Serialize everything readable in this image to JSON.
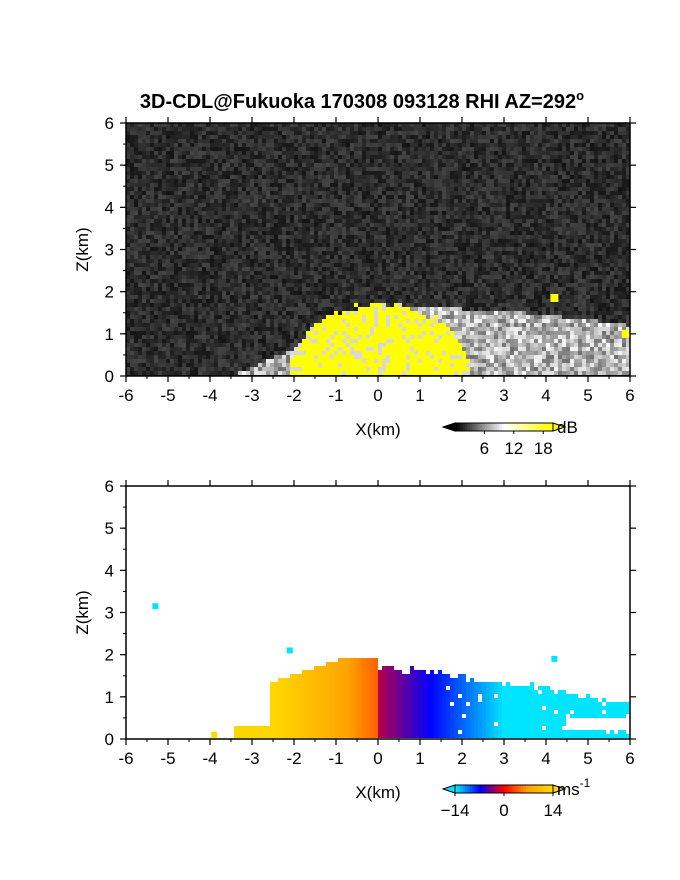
{
  "figure": {
    "title": "3D-CDL@Fukuoka 170308 093128 RHI AZ=292",
    "title_superscript": "o"
  },
  "chart_data": [
    {
      "type": "heatmap",
      "name": "reflectivity-panel",
      "xlabel": "X(km)",
      "ylabel": "Z(km)",
      "xlim": [
        -6,
        6
      ],
      "ylim": [
        0,
        6
      ],
      "x_ticks": [
        -6,
        -5,
        -4,
        -3,
        -2,
        -1,
        0,
        1,
        2,
        3,
        4,
        5,
        6
      ],
      "y_ticks": [
        0,
        1,
        2,
        3,
        4,
        5,
        6
      ],
      "background": "noise",
      "colorbar": {
        "unit": "dB",
        "tick_labels": [
          6,
          12,
          18
        ],
        "range": [
          0,
          20
        ],
        "colors": [
          "#000000",
          "#ffffff",
          "#ffff00"
        ]
      },
      "echo_region": {
        "yellow_core": {
          "x_range": [
            -2.1,
            2.2
          ],
          "top_km": 1.8
        },
        "grey_extent": {
          "x_range": [
            -3.5,
            6.0
          ],
          "top_km": 1.6
        },
        "isolated_echoes": [
          {
            "x": 4.2,
            "z": 1.85
          },
          {
            "x": 5.9,
            "z": 1.0
          }
        ]
      }
    },
    {
      "type": "heatmap",
      "name": "doppler-velocity-panel",
      "xlabel": "X(km)",
      "ylabel": "Z(km)",
      "xlim": [
        -6,
        6
      ],
      "ylim": [
        0,
        6
      ],
      "x_ticks": [
        -6,
        -5,
        -4,
        -3,
        -2,
        -1,
        0,
        1,
        2,
        3,
        4,
        5,
        6
      ],
      "y_ticks": [
        0,
        1,
        2,
        3,
        4,
        5,
        6
      ],
      "background": "white",
      "colorbar": {
        "unit": "ms",
        "unit_superscript": "-1",
        "tick_labels": [
          "−14",
          "0",
          "14"
        ],
        "range": [
          -14,
          14
        ],
        "colors": [
          "#00e5ff",
          "#0000ff",
          "#ff0000",
          "#ffa500",
          "#ffd700"
        ]
      },
      "echo_region": {
        "negative_side": {
          "x_range": [
            -3.4,
            0.0
          ],
          "top_km": 1.9
        },
        "positive_side": {
          "x_range": [
            0.0,
            6.0
          ],
          "top_km": 1.9
        },
        "isolated_echoes": [
          {
            "x": -5.3,
            "z": 3.15
          },
          {
            "x": -2.1,
            "z": 2.1
          },
          {
            "x": -3.9,
            "z": 0.1
          },
          {
            "x": 4.2,
            "z": 1.9
          }
        ]
      }
    }
  ]
}
